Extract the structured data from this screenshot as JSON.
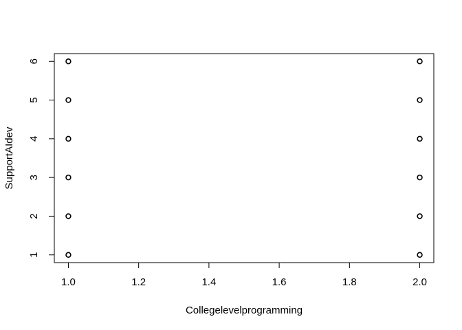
{
  "chart_data": {
    "type": "scatter",
    "title": "",
    "xlabel": "Collegelevelprogramming",
    "ylabel": "SupportAIdev",
    "xlim": [
      0.96,
      2.04
    ],
    "ylim": [
      0.8,
      6.2
    ],
    "x_ticks": [
      1.0,
      1.2,
      1.4,
      1.6,
      1.8,
      2.0
    ],
    "x_tick_labels": [
      "1.0",
      "1.2",
      "1.4",
      "1.6",
      "1.8",
      "2.0"
    ],
    "y_ticks": [
      1,
      2,
      3,
      4,
      5,
      6
    ],
    "y_tick_labels": [
      "1",
      "2",
      "3",
      "4",
      "5",
      "6"
    ],
    "grid": false,
    "legend": "none",
    "marker": "open-circle",
    "marker_color": "#000000",
    "points": [
      {
        "x": 1,
        "y": 1
      },
      {
        "x": 1,
        "y": 2
      },
      {
        "x": 1,
        "y": 3
      },
      {
        "x": 1,
        "y": 4
      },
      {
        "x": 1,
        "y": 5
      },
      {
        "x": 1,
        "y": 6
      },
      {
        "x": 2,
        "y": 1
      },
      {
        "x": 2,
        "y": 2
      },
      {
        "x": 2,
        "y": 3
      },
      {
        "x": 2,
        "y": 4
      },
      {
        "x": 2,
        "y": 5
      },
      {
        "x": 2,
        "y": 6
      }
    ]
  }
}
